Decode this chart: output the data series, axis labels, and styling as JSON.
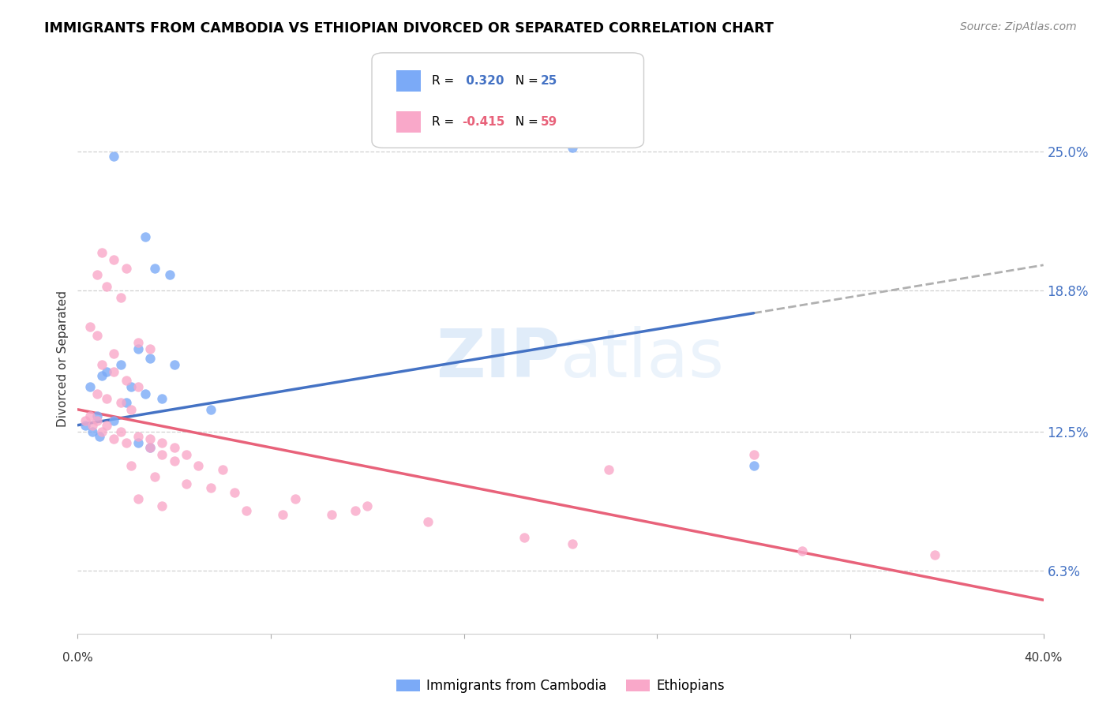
{
  "title": "IMMIGRANTS FROM CAMBODIA VS ETHIOPIAN DIVORCED OR SEPARATED CORRELATION CHART",
  "source": "Source: ZipAtlas.com",
  "ylabel": "Divorced or Separated",
  "y_ticks": [
    6.3,
    12.5,
    18.8,
    25.0
  ],
  "y_tick_labels": [
    "6.3%",
    "12.5%",
    "18.8%",
    "25.0%"
  ],
  "xlim": [
    0.0,
    40.0
  ],
  "ylim": [
    3.5,
    28.0
  ],
  "watermark": "ZIPatlas",
  "cambodia_color": "#7baaf7",
  "ethiopian_color": "#f9a8c9",
  "trendline_cambodia_color": "#4472c4",
  "trendline_ethiopian_color": "#e8627a",
  "trendline_extension_color": "#b0b0b0",
  "cambodia_trend_x0": 0.0,
  "cambodia_trend_y0": 12.8,
  "cambodia_trend_x1": 28.0,
  "cambodia_trend_y1": 17.8,
  "cambodia_ext_x0": 28.0,
  "cambodia_ext_x1": 40.0,
  "ethiopian_trend_x0": 0.0,
  "ethiopian_trend_y0": 13.5,
  "ethiopian_trend_x1": 40.0,
  "ethiopian_trend_y1": 5.0,
  "cambodia_points": [
    [
      1.5,
      24.8
    ],
    [
      20.5,
      25.2
    ],
    [
      2.8,
      21.2
    ],
    [
      3.2,
      19.8
    ],
    [
      3.8,
      19.5
    ],
    [
      2.5,
      16.2
    ],
    [
      3.0,
      15.8
    ],
    [
      4.0,
      15.5
    ],
    [
      1.8,
      15.5
    ],
    [
      1.2,
      15.2
    ],
    [
      1.0,
      15.0
    ],
    [
      0.5,
      14.5
    ],
    [
      2.2,
      14.5
    ],
    [
      2.8,
      14.2
    ],
    [
      3.5,
      14.0
    ],
    [
      2.0,
      13.8
    ],
    [
      5.5,
      13.5
    ],
    [
      0.8,
      13.2
    ],
    [
      1.5,
      13.0
    ],
    [
      0.3,
      12.8
    ],
    [
      0.6,
      12.5
    ],
    [
      0.9,
      12.3
    ],
    [
      2.5,
      12.0
    ],
    [
      3.0,
      11.8
    ],
    [
      28.0,
      11.0
    ]
  ],
  "ethiopian_points": [
    [
      1.0,
      20.5
    ],
    [
      1.5,
      20.2
    ],
    [
      2.0,
      19.8
    ],
    [
      0.8,
      19.5
    ],
    [
      1.2,
      19.0
    ],
    [
      1.8,
      18.5
    ],
    [
      0.5,
      17.2
    ],
    [
      0.8,
      16.8
    ],
    [
      2.5,
      16.5
    ],
    [
      3.0,
      16.2
    ],
    [
      1.5,
      16.0
    ],
    [
      1.0,
      15.5
    ],
    [
      1.5,
      15.2
    ],
    [
      2.0,
      14.8
    ],
    [
      2.5,
      14.5
    ],
    [
      0.8,
      14.2
    ],
    [
      1.2,
      14.0
    ],
    [
      1.8,
      13.8
    ],
    [
      2.2,
      13.5
    ],
    [
      0.5,
      13.2
    ],
    [
      0.8,
      13.0
    ],
    [
      1.2,
      12.8
    ],
    [
      1.8,
      12.5
    ],
    [
      2.5,
      12.3
    ],
    [
      3.0,
      12.2
    ],
    [
      3.5,
      12.0
    ],
    [
      4.0,
      11.8
    ],
    [
      4.5,
      11.5
    ],
    [
      0.3,
      13.0
    ],
    [
      0.6,
      12.8
    ],
    [
      1.0,
      12.5
    ],
    [
      1.5,
      12.2
    ],
    [
      2.0,
      12.0
    ],
    [
      3.0,
      11.8
    ],
    [
      3.5,
      11.5
    ],
    [
      4.0,
      11.2
    ],
    [
      5.0,
      11.0
    ],
    [
      6.0,
      10.8
    ],
    [
      2.2,
      11.0
    ],
    [
      3.2,
      10.5
    ],
    [
      4.5,
      10.2
    ],
    [
      5.5,
      10.0
    ],
    [
      6.5,
      9.8
    ],
    [
      2.5,
      9.5
    ],
    [
      3.5,
      9.2
    ],
    [
      7.0,
      9.0
    ],
    [
      8.5,
      8.8
    ],
    [
      9.0,
      9.5
    ],
    [
      12.0,
      9.2
    ],
    [
      14.5,
      8.5
    ],
    [
      18.5,
      7.8
    ],
    [
      22.0,
      10.8
    ],
    [
      20.5,
      7.5
    ],
    [
      28.0,
      11.5
    ],
    [
      30.0,
      7.2
    ],
    [
      35.5,
      7.0
    ],
    [
      10.5,
      8.8
    ],
    [
      11.5,
      9.0
    ]
  ]
}
